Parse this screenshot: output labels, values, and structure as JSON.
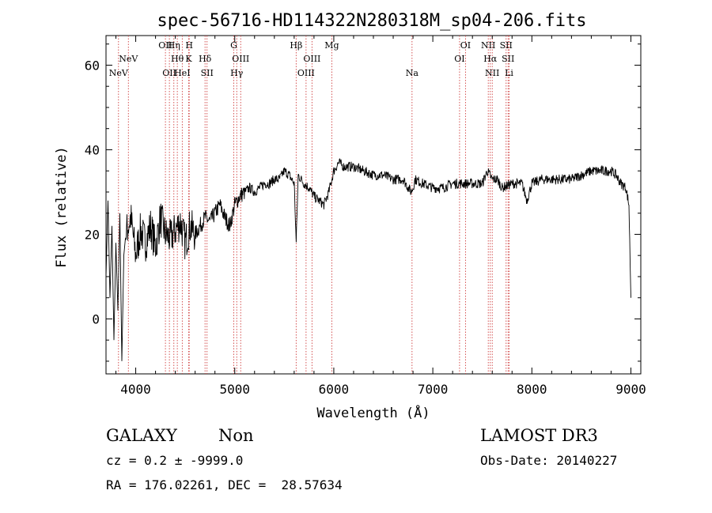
{
  "chart_data": {
    "type": "line",
    "title": "spec-56716-HD114322N280318M_sp04-206.fits",
    "xlabel": "Wavelength (Å)",
    "ylabel": "Flux (relative)",
    "xlim": [
      3700,
      9100
    ],
    "ylim": [
      -13,
      67
    ],
    "xticks": [
      4000,
      5000,
      6000,
      7000,
      8000,
      9000
    ],
    "xtick_labels": [
      "4000",
      "5000",
      "6000",
      "7000",
      "8000",
      "9000"
    ],
    "yticks": [
      0,
      20,
      40,
      60
    ],
    "ytick_labels": [
      "0",
      "20",
      "40",
      "60"
    ],
    "grid": false,
    "series": [
      {
        "name": "flux",
        "x": [
          3700,
          3720,
          3740,
          3760,
          3780,
          3800,
          3820,
          3840,
          3860,
          3880,
          3900,
          3950,
          4000,
          4050,
          4100,
          4150,
          4200,
          4250,
          4300,
          4350,
          4400,
          4450,
          4500,
          4550,
          4600,
          4650,
          4700,
          4750,
          4800,
          4850,
          4900,
          4950,
          5000,
          5050,
          5100,
          5150,
          5200,
          5250,
          5300,
          5350,
          5400,
          5450,
          5500,
          5550,
          5600,
          5620,
          5640,
          5700,
          5750,
          5800,
          5850,
          5900,
          5950,
          6000,
          6050,
          6100,
          6200,
          6300,
          6400,
          6500,
          6600,
          6700,
          6780,
          6800,
          6820,
          6900,
          7000,
          7100,
          7200,
          7300,
          7400,
          7500,
          7550,
          7600,
          7650,
          7700,
          7800,
          7900,
          7950,
          8000,
          8100,
          8200,
          8300,
          8400,
          8500,
          8600,
          8700,
          8800,
          8850,
          8900,
          8950,
          8980,
          9000
        ],
        "values": [
          10,
          28,
          5,
          22,
          -5,
          18,
          2,
          25,
          -10,
          15,
          20,
          24,
          15,
          21,
          18,
          22,
          17,
          24,
          20,
          19,
          21,
          23,
          18,
          22,
          20,
          22,
          24,
          23,
          25,
          27,
          24,
          22,
          27,
          29,
          30,
          31,
          30,
          31,
          32,
          32,
          33,
          33,
          35,
          34,
          32,
          18,
          34,
          32,
          31,
          29,
          28,
          27,
          30,
          35,
          37,
          36,
          36,
          35,
          34,
          34,
          33,
          33,
          30,
          31,
          33,
          32,
          31,
          31,
          32,
          32,
          32,
          32,
          35,
          33,
          33,
          31,
          32,
          32,
          28,
          32,
          33,
          33,
          33,
          33,
          34,
          35,
          35,
          35,
          34,
          32,
          31,
          27,
          5
        ]
      }
    ],
    "lines": [
      {
        "id": "nev1",
        "label": "NeV",
        "x": 3826,
        "row": 2
      },
      {
        "id": "nev2",
        "label": "NeV",
        "x": 3926,
        "row": 1
      },
      {
        "id": "oii",
        "label": "OII",
        "x": 4300,
        "row": 0
      },
      {
        "id": "oii-b",
        "label": "OII",
        "x": 4340,
        "row": 2
      },
      {
        "id": "heta",
        "label": "Hη",
        "x": 4385,
        "row": 0
      },
      {
        "id": "htheta",
        "label": "Hθ",
        "x": 4420,
        "row": 1
      },
      {
        "id": "hei",
        "label": "HeI",
        "x": 4470,
        "row": 2
      },
      {
        "id": "h",
        "label": "H",
        "x": 4540,
        "row": 0
      },
      {
        "id": "k",
        "label": "K",
        "x": 4535,
        "row": 1
      },
      {
        "id": "hdelta",
        "label": "Hδ",
        "x": 4700,
        "row": 1
      },
      {
        "id": "sii1",
        "label": "SII",
        "x": 4720,
        "row": 2
      },
      {
        "id": "g",
        "label": "G",
        "x": 4990,
        "row": 0
      },
      {
        "id": "oiii1",
        "label": "OIII",
        "x": 5060,
        "row": 1
      },
      {
        "id": "hgamma",
        "label": "Hγ",
        "x": 5020,
        "row": 2
      },
      {
        "id": "hbeta",
        "label": "Hβ",
        "x": 5620,
        "row": 0
      },
      {
        "id": "oiii2",
        "label": "OIII",
        "x": 5780,
        "row": 1
      },
      {
        "id": "oiii3",
        "label": "OIII",
        "x": 5720,
        "row": 2
      },
      {
        "id": "mg",
        "label": "Mg",
        "x": 5980,
        "row": 0
      },
      {
        "id": "na",
        "label": "Na",
        "x": 6790,
        "row": 2
      },
      {
        "id": "oi1",
        "label": "OI",
        "x": 7330,
        "row": 0
      },
      {
        "id": "oi2",
        "label": "OI",
        "x": 7270,
        "row": 1
      },
      {
        "id": "nii1",
        "label": "NII",
        "x": 7560,
        "row": 0
      },
      {
        "id": "halpha",
        "label": "Hα",
        "x": 7580,
        "row": 1
      },
      {
        "id": "nii2",
        "label": "NII",
        "x": 7600,
        "row": 2
      },
      {
        "id": "sii2",
        "label": "SII",
        "x": 7740,
        "row": 0
      },
      {
        "id": "sii3",
        "label": "SII",
        "x": 7760,
        "row": 1
      },
      {
        "id": "li",
        "label": "Li",
        "x": 7770,
        "row": 2
      }
    ]
  },
  "info": {
    "object_class": "GALAXY",
    "subclass": "Non",
    "survey": "LAMOST DR3",
    "cz": "cz = 0.2 ± -9999.0",
    "obs_date": "Obs-Date: 20140227",
    "coords": "RA = 176.02261, DEC =  28.57634"
  }
}
